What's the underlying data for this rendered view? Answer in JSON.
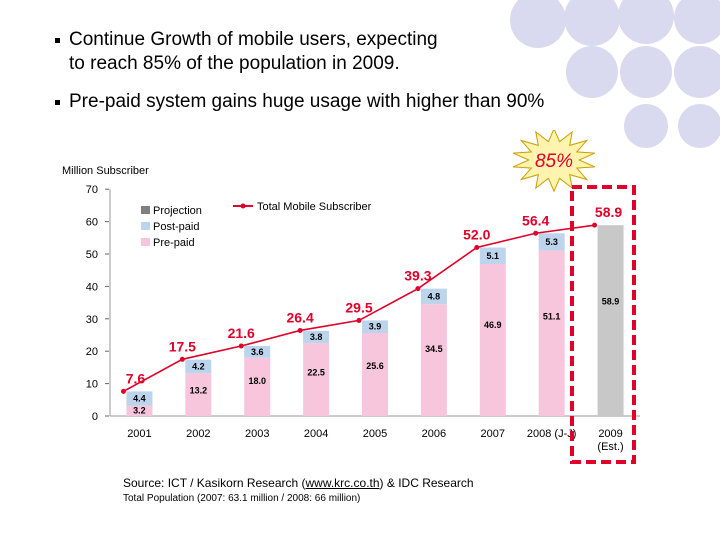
{
  "bullets": [
    {
      "line1": "Continue Growth of mobile users, expecting",
      "line2": "to reach 85% of the population in 2009."
    },
    {
      "line1": "Pre-paid system gains huge usage with higher than 90%",
      "line2": ""
    }
  ],
  "starburst_label": "85%",
  "colors": {
    "prepaid": "#f7c6dd",
    "postpaid": "#bcd4ec",
    "projection": "#c8c8c8",
    "line": "#e0002a",
    "label": "#e0002a",
    "highlight": "#e0002a",
    "circles": "#d9d9ef"
  },
  "chart_data": {
    "type": "bar",
    "ylabel": "Million Subscriber",
    "ylim": [
      0,
      70
    ],
    "yticks": [
      0,
      10,
      20,
      30,
      40,
      50,
      60,
      70
    ],
    "categories": [
      "2001",
      "2002",
      "2003",
      "2004",
      "2005",
      "2006",
      "2007",
      "2008 (J-J)",
      "2009 (Est.)"
    ],
    "category_lines": [
      [
        "2001"
      ],
      [
        "2002"
      ],
      [
        "2003"
      ],
      [
        "2004"
      ],
      [
        "2005"
      ],
      [
        "2006"
      ],
      [
        "2007"
      ],
      [
        "2008 (J-J)"
      ],
      [
        "2009",
        "(Est.)"
      ]
    ],
    "legend": {
      "projection": "Projection",
      "postpaid": "Post-paid",
      "prepaid": "Pre-paid",
      "total": "Total Mobile Subscriber"
    },
    "series": [
      {
        "name": "Pre-paid",
        "values": [
          3.2,
          13.2,
          18.0,
          22.5,
          25.6,
          34.5,
          46.9,
          51.1,
          null
        ]
      },
      {
        "name": "Post-paid",
        "values": [
          4.4,
          4.2,
          3.6,
          3.8,
          3.9,
          4.8,
          5.1,
          5.3,
          null
        ]
      },
      {
        "name": "Projection",
        "values": [
          null,
          null,
          null,
          null,
          null,
          null,
          null,
          null,
          58.9
        ]
      }
    ],
    "prepaid_labels": [
      "3.2",
      "13.2",
      "18.0",
      "22.5",
      "25.6",
      "34.5",
      "46.9",
      "51.1",
      ""
    ],
    "postpaid_labels": [
      "4.4",
      "4.2",
      "3.6",
      "3.8",
      "3.9",
      "4.8",
      "5.1",
      "5.3",
      ""
    ],
    "projection_labels": [
      "",
      "",
      "",
      "",
      "",
      "",
      "",
      "",
      "58.9"
    ],
    "total": {
      "name": "Total Mobile Subscriber",
      "values": [
        7.6,
        17.5,
        21.6,
        26.4,
        29.5,
        39.3,
        52.0,
        56.4,
        58.9
      ],
      "labels": [
        "7.6",
        "17.5",
        "21.6",
        "26.4",
        "29.5",
        "39.3",
        "52.0",
        "56.4",
        "58.9"
      ]
    }
  },
  "source": {
    "prefix": "Source: ICT / Kasikorn Research (",
    "link": "www.krc.co.th",
    "suffix": ") & IDC Research"
  },
  "total_population": "Total Population (2007: 63.1 million / 2008: 66 million)"
}
